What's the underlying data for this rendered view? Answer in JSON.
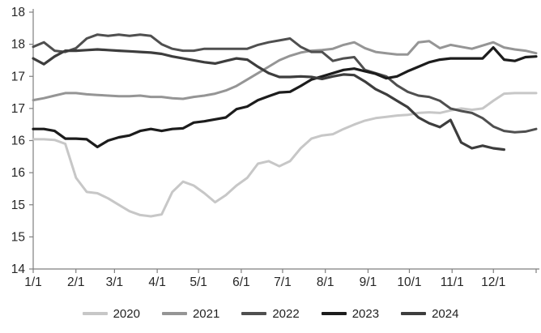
{
  "chart_data": {
    "type": "line",
    "title": "",
    "xlabel": "",
    "ylabel": "",
    "grid": false,
    "legend_position": "bottom",
    "ylim": [
      14,
      18
    ],
    "y_tick_step": 0.5,
    "y_tick_labels_top_to_bottom": [
      "18",
      "18",
      "17",
      "17",
      "16",
      "16",
      "15",
      "15",
      "14"
    ],
    "x_total_days": 365,
    "x_tick_days": [
      0,
      31,
      59,
      90,
      120,
      151,
      181,
      212,
      243,
      273,
      304,
      334,
      365
    ],
    "x_tick_labels": [
      "1/1",
      "2/1",
      "3/1",
      "4/1",
      "5/1",
      "6/1",
      "7/1",
      "8/1",
      "9/1",
      "10/1",
      "11/1",
      "12/1",
      ""
    ],
    "axis_color": "#7f7f7f",
    "tick_text_color": "#262626",
    "series": [
      {
        "name": "2020",
        "color": "#c7c7c7",
        "stroke_width": 3,
        "values": [
          16.02,
          16.02,
          16.01,
          15.95,
          15.42,
          15.2,
          15.18,
          15.1,
          15.0,
          14.9,
          14.84,
          14.82,
          14.85,
          15.2,
          15.36,
          15.3,
          15.18,
          15.04,
          15.15,
          15.3,
          15.42,
          15.64,
          15.68,
          15.6,
          15.68,
          15.88,
          16.03,
          16.08,
          16.1,
          16.18,
          16.25,
          16.31,
          16.35,
          16.37,
          16.39,
          16.4,
          16.43,
          16.44,
          16.43,
          16.47,
          16.5,
          16.48,
          16.5,
          16.62,
          16.73,
          16.74,
          16.74,
          16.74
        ]
      },
      {
        "name": "2021",
        "color": "#959595",
        "stroke_width": 3,
        "values": [
          16.63,
          16.66,
          16.7,
          16.74,
          16.74,
          16.72,
          16.71,
          16.7,
          16.69,
          16.69,
          16.7,
          16.68,
          16.68,
          16.66,
          16.65,
          16.68,
          16.7,
          16.73,
          16.78,
          16.85,
          16.95,
          17.05,
          17.15,
          17.25,
          17.32,
          17.37,
          17.4,
          17.41,
          17.43,
          17.49,
          17.53,
          17.44,
          17.38,
          17.36,
          17.34,
          17.34,
          17.53,
          17.55,
          17.44,
          17.49,
          17.46,
          17.43,
          17.48,
          17.53,
          17.45,
          17.42,
          17.4,
          17.36
        ]
      },
      {
        "name": "2022",
        "color": "#4f4f4f",
        "stroke_width": 3,
        "values": [
          17.46,
          17.53,
          17.4,
          17.38,
          17.44,
          17.59,
          17.65,
          17.63,
          17.65,
          17.63,
          17.65,
          17.63,
          17.5,
          17.43,
          17.4,
          17.4,
          17.43,
          17.43,
          17.43,
          17.43,
          17.43,
          17.49,
          17.53,
          17.56,
          17.59,
          17.46,
          17.38,
          17.38,
          17.24,
          17.28,
          17.3,
          17.1,
          17.05,
          17.0,
          16.86,
          16.76,
          16.7,
          16.68,
          16.62,
          16.5,
          16.46,
          16.43,
          16.35,
          16.22,
          16.15,
          16.13,
          16.14,
          16.18
        ]
      },
      {
        "name": "2023",
        "color": "#1c1c1c",
        "stroke_width": 3.2,
        "values": [
          16.18,
          16.18,
          16.15,
          16.03,
          16.03,
          16.02,
          15.9,
          16.0,
          16.05,
          16.08,
          16.15,
          16.18,
          16.15,
          16.18,
          16.19,
          16.28,
          16.3,
          16.33,
          16.36,
          16.49,
          16.53,
          16.63,
          16.69,
          16.75,
          16.76,
          16.85,
          16.95,
          17.0,
          17.05,
          17.1,
          17.12,
          17.08,
          17.04,
          16.97,
          17.0,
          17.08,
          17.15,
          17.22,
          17.26,
          17.28,
          17.28,
          17.28,
          17.28,
          17.45,
          17.26,
          17.24,
          17.3,
          17.31
        ]
      },
      {
        "name": "2024",
        "color": "#3d3d3d",
        "stroke_width": 3.2,
        "values": [
          17.28,
          17.19,
          17.31,
          17.4,
          17.4,
          17.41,
          17.42,
          17.41,
          17.4,
          17.39,
          17.38,
          17.37,
          17.35,
          17.31,
          17.28,
          17.25,
          17.22,
          17.2,
          17.24,
          17.28,
          17.26,
          17.15,
          17.05,
          16.99,
          16.99,
          17.0,
          16.99,
          16.96,
          17.0,
          17.03,
          17.02,
          16.92,
          16.8,
          16.72,
          16.62,
          16.52,
          16.36,
          16.27,
          16.21,
          16.32,
          15.97,
          15.88,
          15.92,
          15.88,
          15.86,
          null,
          null,
          null
        ]
      }
    ],
    "legend": [
      "2020",
      "2021",
      "2022",
      "2023",
      "2024"
    ]
  }
}
